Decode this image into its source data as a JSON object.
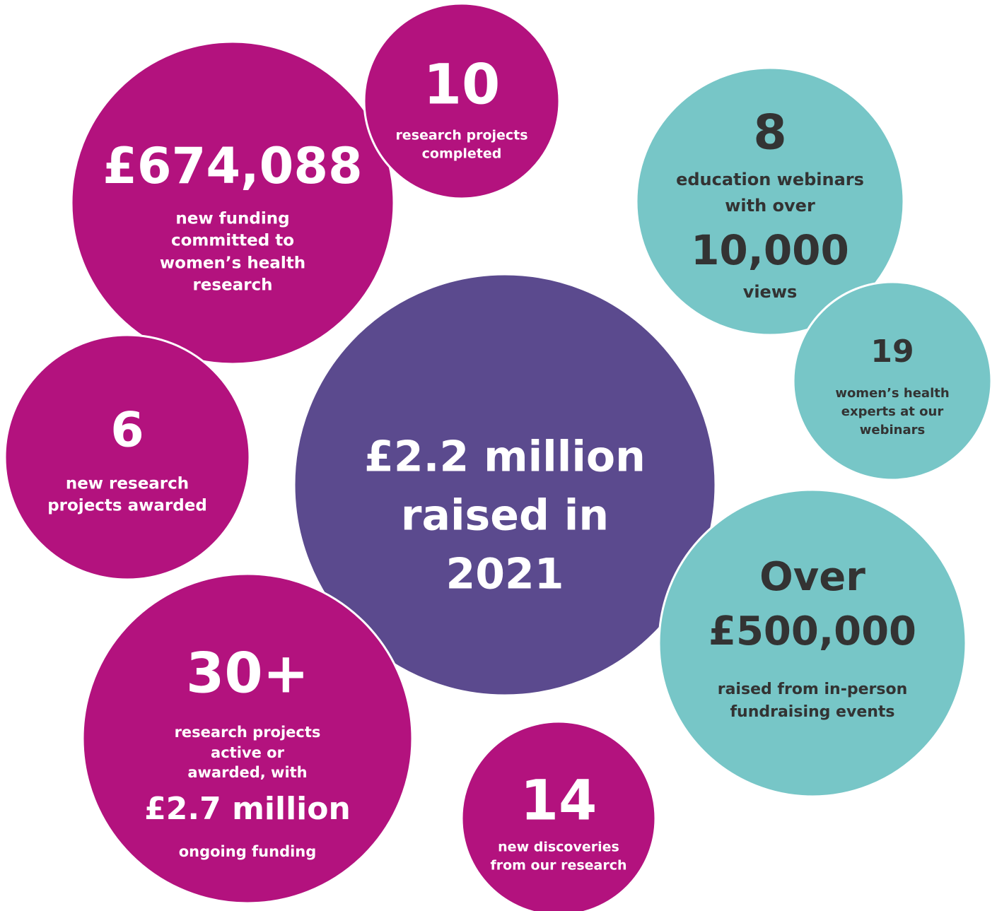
{
  "bubbles": [
    {
      "lines": [
        "£674,088",
        "new funding",
        "committed to",
        "women’s health",
        "research"
      ]
    },
    {
      "lines": [
        "10",
        "research projects",
        "completed"
      ]
    },
    {
      "lines": [
        "8",
        "education webinars",
        "with over",
        "10,000",
        "views"
      ]
    },
    {
      "lines": [
        "19",
        "women’s health",
        "experts at our",
        "webinars"
      ]
    },
    {
      "lines": [
        "6",
        "new research",
        "projects awarded"
      ]
    },
    {
      "lines": [
        "£2.2 million",
        "raised in",
        "2021"
      ]
    },
    {
      "lines": [
        "Over",
        "£500,000",
        "raised from in-person",
        "fundraising events"
      ]
    },
    {
      "lines": [
        "30+",
        "research projects",
        "active or",
        "awarded, with",
        "£2.7 million",
        "ongoing funding"
      ]
    },
    {
      "lines": [
        "14",
        "new discoveries",
        "from our research"
      ]
    }
  ]
}
